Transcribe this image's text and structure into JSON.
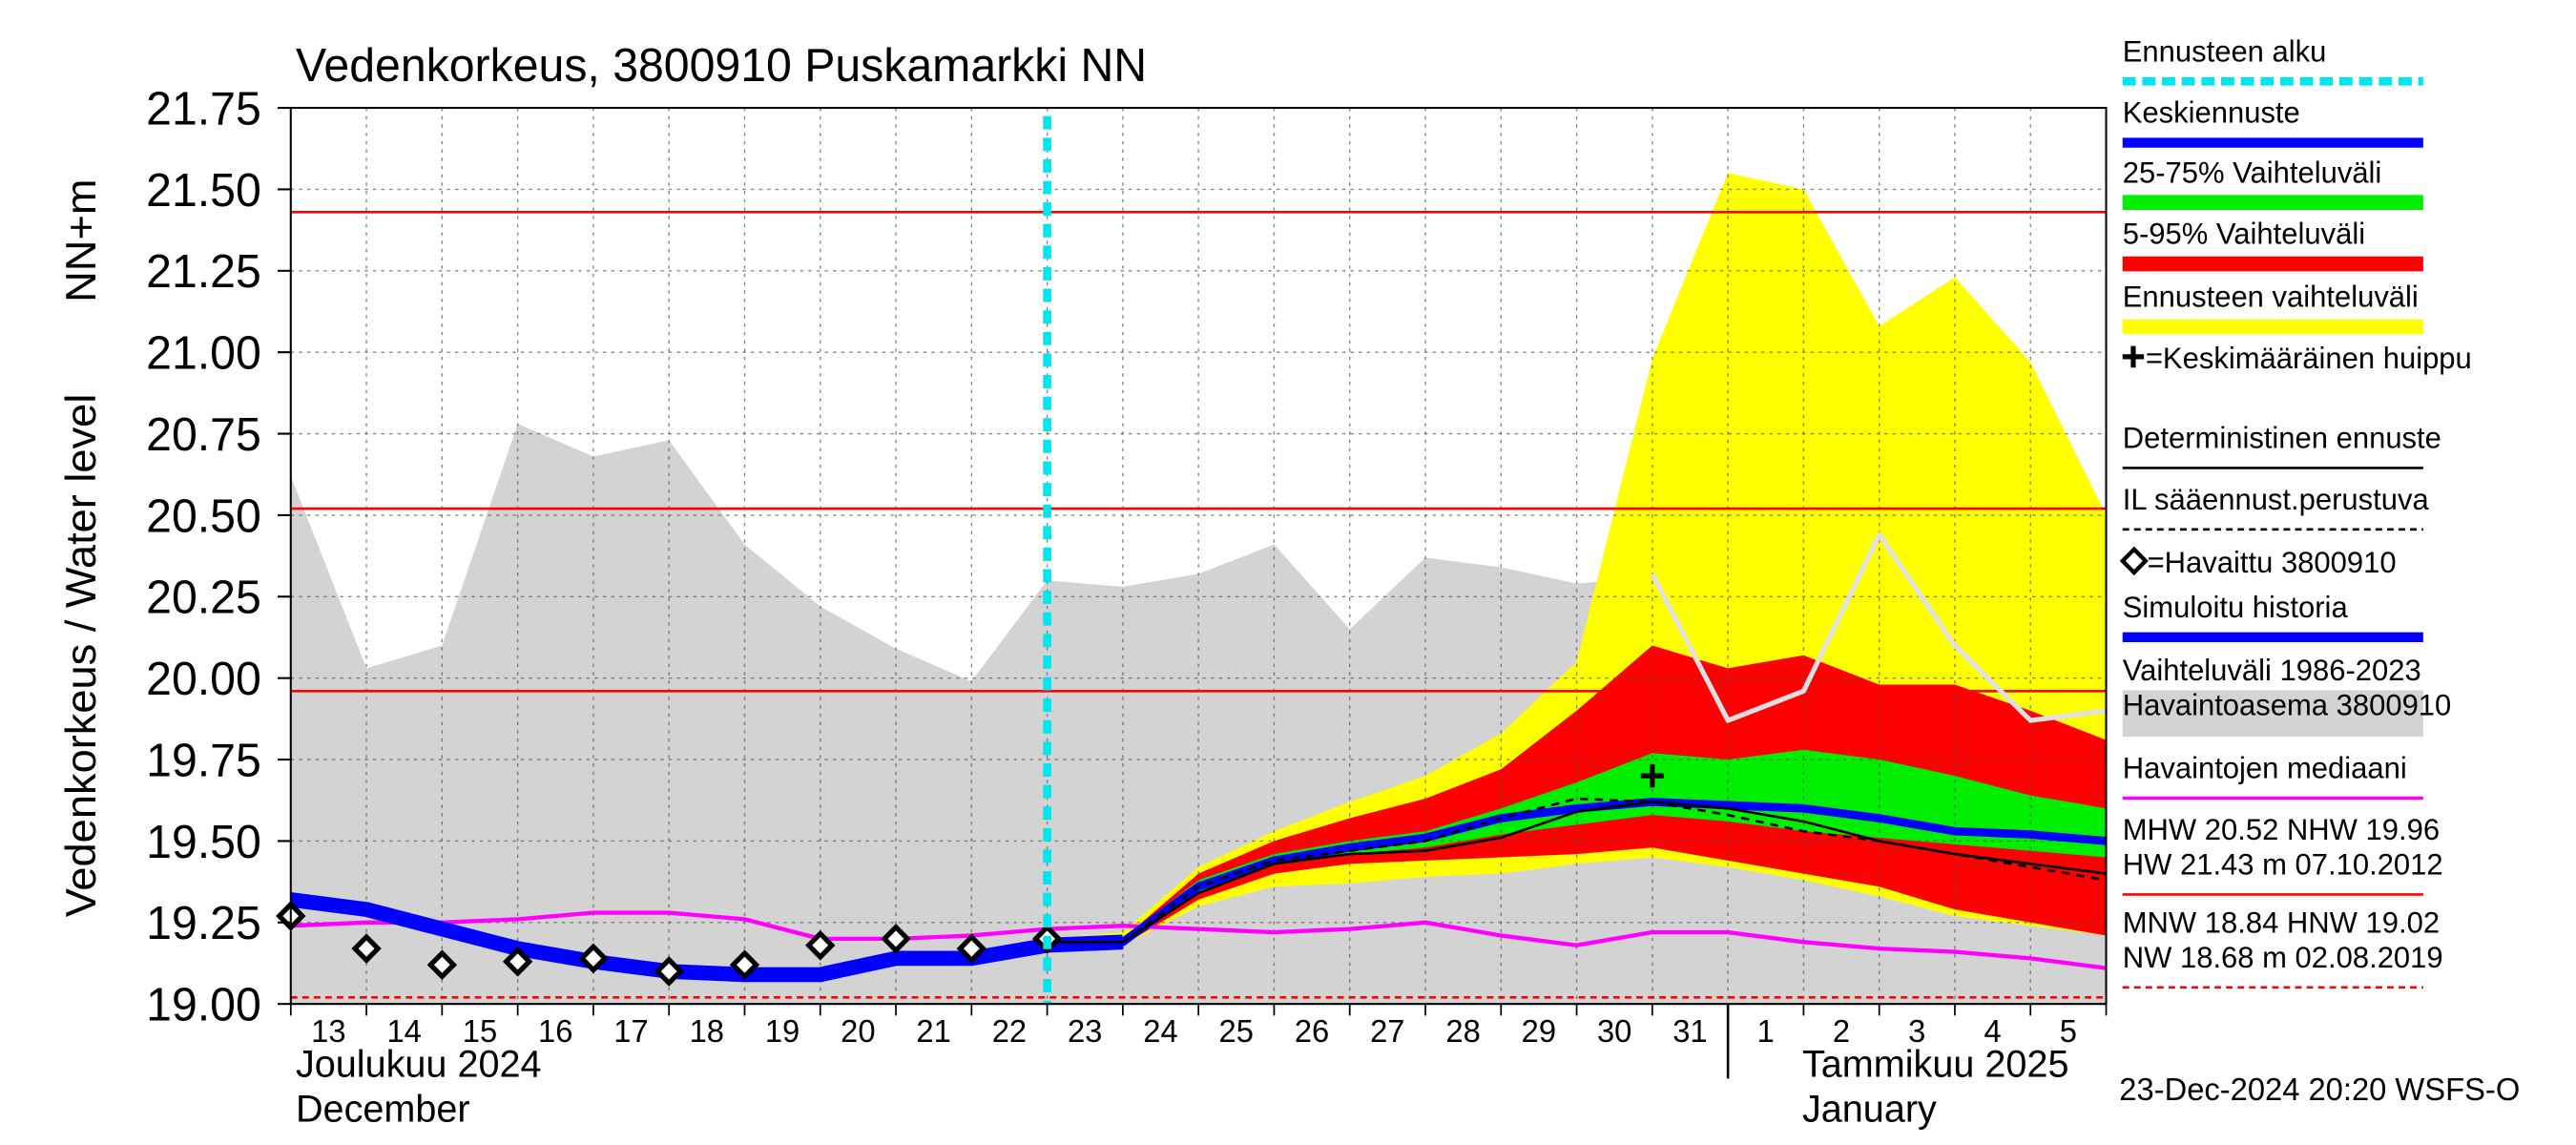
{
  "chart_data": {
    "type": "line",
    "title": "Vedenkorkeus, 3800910 Puskamarkki NN",
    "y_label": "Vedenkorkeus / Water level",
    "y_unit": "NN+m",
    "x_labels": [
      "Joulukuu  2024",
      "December",
      "Tammikuu  2025",
      "January"
    ],
    "footer": "23-Dec-2024 20:20 WSFS-O",
    "categories": [
      "13",
      "14",
      "15",
      "16",
      "17",
      "18",
      "19",
      "20",
      "21",
      "22",
      "23",
      "24",
      "25",
      "26",
      "27",
      "28",
      "29",
      "30",
      "31",
      "1",
      "2",
      "3",
      "4",
      "5",
      null
    ],
    "ylim": [
      19.0,
      21.75
    ],
    "yticks": [
      {
        "value": 19.0,
        "label": "19.00"
      },
      {
        "value": 19.25,
        "label": "19.25"
      },
      {
        "value": 19.5,
        "label": "19.50"
      },
      {
        "value": 19.75,
        "label": "19.75"
      },
      {
        "value": 20.0,
        "label": "20.00"
      },
      {
        "value": 20.25,
        "label": "20.25"
      },
      {
        "value": 20.5,
        "label": "20.50"
      },
      {
        "value": 20.75,
        "label": "20.75"
      },
      {
        "value": 21.0,
        "label": "21.00"
      },
      {
        "value": 21.25,
        "label": "21.25"
      },
      {
        "value": 21.5,
        "label": "21.50"
      },
      {
        "value": 21.75,
        "label": "21.75"
      }
    ],
    "grid": true,
    "forecast_start": 10,
    "history_area": {
      "color": "#d3d3d3",
      "values": [
        20.62,
        20.03,
        20.1,
        20.78,
        20.68,
        20.73,
        20.41,
        20.22,
        20.09,
        19.99,
        20.3,
        20.28,
        20.32,
        20.41,
        20.15,
        20.37,
        20.34,
        20.29,
        20.31,
        20.3,
        20.3,
        20.3,
        20.3,
        20.3,
        20.3
      ]
    },
    "bands": [
      {
        "color": "#ffff00",
        "upper": [
          null,
          null,
          null,
          null,
          null,
          null,
          null,
          null,
          null,
          null,
          19.2,
          19.22,
          19.42,
          19.53,
          19.62,
          19.7,
          19.83,
          20.05,
          20.98,
          21.55,
          21.5,
          21.08,
          21.23,
          20.97,
          20.5
        ],
        "lower": [
          null,
          null,
          null,
          null,
          null,
          null,
          null,
          null,
          null,
          null,
          19.18,
          19.18,
          19.3,
          19.36,
          19.37,
          19.39,
          19.4,
          19.43,
          19.45,
          19.42,
          19.38,
          19.33,
          19.27,
          19.24,
          19.21
        ]
      },
      {
        "color": "#ff0000",
        "upper": [
          null,
          null,
          null,
          null,
          null,
          null,
          null,
          null,
          null,
          null,
          19.2,
          19.2,
          19.4,
          19.5,
          19.57,
          19.63,
          19.72,
          19.9,
          20.1,
          20.03,
          20.07,
          19.98,
          19.98,
          19.9,
          19.81
        ],
        "lower": [
          null,
          null,
          null,
          null,
          null,
          null,
          null,
          null,
          null,
          null,
          19.18,
          19.18,
          19.32,
          19.4,
          19.43,
          19.44,
          19.45,
          19.46,
          19.48,
          19.44,
          19.4,
          19.36,
          19.29,
          19.25,
          19.21
        ]
      },
      {
        "color": "#00ee00",
        "upper": [
          null,
          null,
          null,
          null,
          null,
          null,
          null,
          null,
          null,
          null,
          19.2,
          19.2,
          19.38,
          19.46,
          19.5,
          19.53,
          19.6,
          19.68,
          19.77,
          19.75,
          19.78,
          19.75,
          19.7,
          19.64,
          19.6
        ],
        "lower": [
          null,
          null,
          null,
          null,
          null,
          null,
          null,
          null,
          null,
          null,
          19.19,
          19.19,
          19.34,
          19.43,
          19.46,
          19.48,
          19.52,
          19.55,
          19.58,
          19.56,
          19.53,
          19.51,
          19.49,
          19.47,
          19.45
        ]
      }
    ],
    "hlines": [
      {
        "value": 21.43,
        "color": "#ff0000"
      },
      {
        "value": 20.52,
        "color": "#ff0000"
      },
      {
        "value": 19.96,
        "color": "#ff0000"
      },
      {
        "value": 19.02,
        "color": "#ff0000",
        "dash": true
      }
    ],
    "series": [
      {
        "color": "#e0e0e0",
        "width": 3,
        "values": [
          null,
          null,
          null,
          null,
          null,
          null,
          null,
          null,
          null,
          null,
          null,
          null,
          null,
          null,
          null,
          null,
          null,
          null,
          20.32,
          19.87,
          19.96,
          20.44,
          20.1,
          19.87,
          19.9
        ]
      },
      {
        "color": "#ff00ff",
        "width": 2.5,
        "values": [
          19.24,
          19.25,
          19.25,
          19.26,
          19.28,
          19.28,
          19.26,
          19.2,
          19.2,
          19.21,
          19.23,
          19.24,
          19.23,
          19.22,
          19.23,
          19.25,
          19.21,
          19.18,
          19.22,
          19.22,
          19.19,
          19.17,
          19.16,
          19.14,
          19.11
        ]
      },
      {
        "color": "#0000ff",
        "width": 9,
        "values": [
          19.32,
          19.29,
          19.23,
          19.17,
          19.13,
          19.1,
          19.09,
          19.09,
          19.14,
          19.14,
          19.18,
          19.19,
          null,
          null,
          null,
          null,
          null,
          null,
          null,
          null,
          null,
          null,
          null,
          null,
          null
        ]
      },
      {
        "color": "#0000ff",
        "width": 5,
        "values": [
          null,
          null,
          null,
          null,
          null,
          null,
          null,
          null,
          null,
          null,
          19.19,
          19.19,
          19.36,
          19.44,
          19.48,
          19.51,
          19.57,
          19.6,
          19.62,
          19.61,
          19.6,
          19.57,
          19.53,
          19.52,
          19.5
        ]
      },
      {
        "color": "#000000",
        "width": 1.5,
        "values": [
          null,
          null,
          null,
          null,
          null,
          null,
          null,
          null,
          null,
          null,
          19.19,
          19.19,
          19.34,
          19.43,
          19.46,
          19.47,
          19.51,
          19.59,
          19.62,
          19.6,
          19.56,
          19.5,
          19.46,
          19.43,
          19.4
        ]
      },
      {
        "color": "#000000",
        "width": 1.5,
        "dash": true,
        "values": [
          null,
          null,
          null,
          null,
          null,
          null,
          null,
          null,
          null,
          null,
          19.19,
          19.19,
          19.36,
          19.44,
          19.47,
          19.5,
          19.57,
          19.63,
          19.62,
          19.58,
          19.53,
          19.5,
          19.46,
          19.42,
          19.38
        ]
      }
    ],
    "observed": {
      "color": "#000000",
      "values": [
        19.27,
        19.17,
        19.12,
        19.13,
        19.14,
        19.1,
        19.12,
        19.18,
        19.2,
        19.17,
        19.2,
        null,
        null,
        null,
        null,
        null,
        null,
        null,
        null,
        null,
        null,
        null,
        null,
        null,
        null
      ]
    },
    "peak": {
      "index": 18,
      "value": 19.7
    },
    "legend": [
      {
        "labels": [
          "Ennusteen alku"
        ],
        "color": "#00e5ee",
        "style": "dash",
        "width": 5
      },
      {
        "labels": [
          "Keskiennuste"
        ],
        "color": "#0000ff",
        "style": "line",
        "width": 6
      },
      {
        "labels": [
          "25-75% Vaihteluväli"
        ],
        "color": "#00ee00",
        "style": "line",
        "width": 9
      },
      {
        "labels": [
          "5-95% Vaihteluväli"
        ],
        "color": "#ff0000",
        "style": "line",
        "width": 9
      },
      {
        "labels": [
          "Ennusteen vaihteluväli"
        ],
        "color": "#ffff00",
        "style": "line",
        "width": 9
      },
      {
        "labels": [
          "=Keskimääräinen huippu"
        ],
        "marker": "plus"
      },
      {
        "labels": [
          "Deterministinen ennuste"
        ],
        "color": "#000000",
        "style": "line",
        "width": 1.5
      },
      {
        "labels": [
          "IL sääennust.perustuva"
        ],
        "color": "#000000",
        "style": "dash",
        "width": 1.5
      },
      {
        "labels": [
          "=Havaittu 3800910"
        ],
        "marker": "diamond"
      },
      {
        "labels": [
          "Simuloitu historia"
        ],
        "color": "#0000ff",
        "style": "line",
        "width": 6
      },
      {
        "labels": [
          "Vaihteluväli 1986-2023",
          " Havaintoasema 3800910"
        ],
        "color": "#d3d3d3",
        "style": "box"
      },
      {
        "labels": [
          "Havaintojen mediaani"
        ],
        "color": "#ff00ff",
        "style": "line",
        "width": 2
      },
      {
        "labels": [
          "MHW  20.52 NHW  19.96",
          "HW  21.43 m 07.10.2012"
        ],
        "color": "#ff0000",
        "style": "line",
        "width": 1.5
      },
      {
        "labels": [
          "MNW  18.84 HNW  19.02",
          "NW  18.68 m 02.08.2019"
        ],
        "color": "#ff0000",
        "style": "dash",
        "width": 1.5
      }
    ]
  }
}
